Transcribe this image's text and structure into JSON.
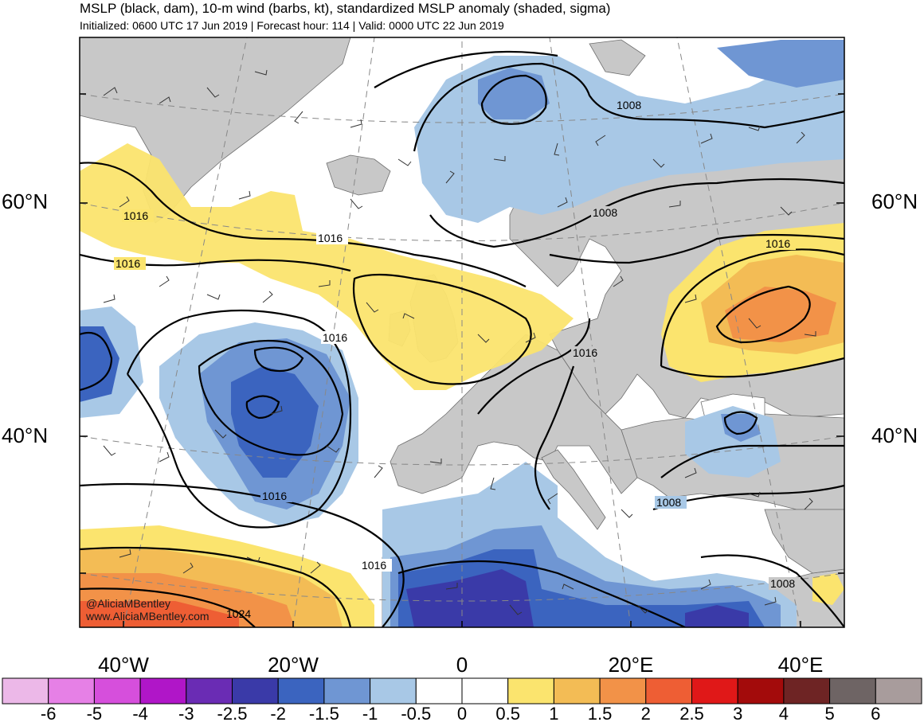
{
  "header": {
    "title": "MSLP (black, dam), 10-m wind (barbs, kt), standardized MSLP anomaly (shaded, sigma)",
    "subtitle": "Initialized: 0600 UTC 17 Jun 2019 | Forecast hour: 114 | Valid: 0000 UTC 22 Jun 2019"
  },
  "map": {
    "lat_labels": [
      "60°N",
      "40°N"
    ],
    "lon_labels": [
      "40°W",
      "20°W",
      "0",
      "20°E",
      "40°E"
    ],
    "contour_labels": [
      "1016",
      "1016",
      "1016",
      "1016",
      "1016",
      "1016",
      "1016",
      "1008",
      "1008",
      "1008",
      "1008",
      "1024"
    ],
    "credit": {
      "handle": "@AliciaMBentley",
      "site": "www.AliciaMBentley.com"
    },
    "colors": {
      "land": "#c8c8c8",
      "ocean": "#ffffff",
      "contour": "#000000"
    }
  },
  "colorbar": {
    "labels": [
      "-6",
      "-5",
      "-4",
      "-3",
      "-2.5",
      "-2",
      "-1.5",
      "-1",
      "-0.5",
      "0",
      "0.5",
      "1",
      "1.5",
      "2",
      "2.5",
      "3",
      "4",
      "5",
      "6"
    ],
    "colors": [
      "#ecb8e8",
      "#e680e6",
      "#d64fdc",
      "#b016c8",
      "#6a2cb4",
      "#3a3aa8",
      "#3b64bf",
      "#6f96d3",
      "#a8c8e6",
      "#ffffff",
      "#ffffff",
      "#fbe46e",
      "#f3bc55",
      "#f29248",
      "#ee5e34",
      "#e01818",
      "#a30b0b",
      "#6e2424",
      "#6e6464",
      "#a89c9c"
    ]
  }
}
